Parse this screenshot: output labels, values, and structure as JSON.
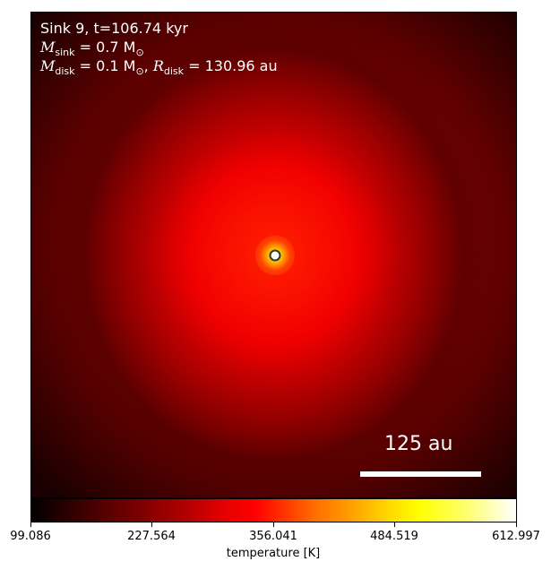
{
  "map": {
    "title": "Sink 9, t=106.74 kyr",
    "m_sink_symbol": "M",
    "m_sink_sub": "sink",
    "m_sink_value": " = 0.7 M",
    "m_sink_unit_sub": "⊙",
    "m_disk_symbol": "M",
    "m_disk_sub": "disk",
    "m_disk_value": " = 0.1 M",
    "m_disk_unit_sub": "⊙",
    "r_disk_symbol": "R",
    "r_disk_sub": "disk",
    "r_disk_value": " = 130.96 au",
    "scale_bar_label": "125 au",
    "colormap": "hot"
  },
  "colorbar": {
    "ticks": [
      "99.086",
      "227.564",
      "356.041",
      "484.519",
      "612.997"
    ],
    "label": "temperature [K]",
    "range": [
      99.086,
      612.997
    ]
  }
}
